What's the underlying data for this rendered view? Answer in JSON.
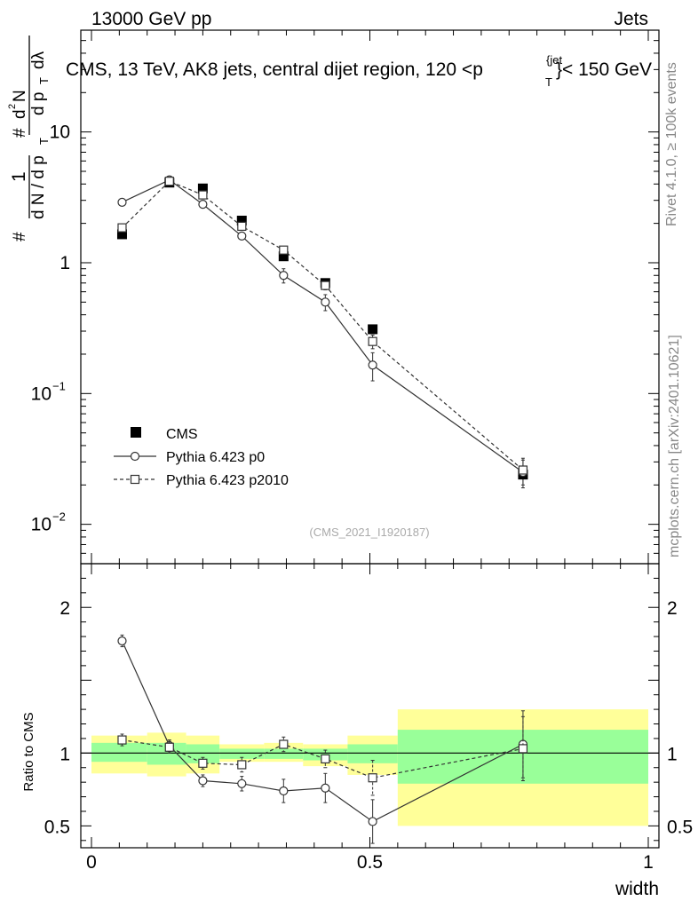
{
  "header": {
    "left": "13000 GeV pp",
    "right": "Jets"
  },
  "side_labels": {
    "rivet": "Rivet 4.1.0, ≥ 100k events",
    "mcplots": "mcplots.cern.ch [arXiv:2401.10621]"
  },
  "colors": {
    "band_inner": "#99ff99",
    "band_outer": "#ffff99",
    "line": "#333333",
    "side_text": "#888888"
  },
  "chart_data": {
    "type": "line",
    "title_main": "CMS, 13 TeV, AK8 jets, central dijet region, 120 <p",
    "title_sub": "T",
    "title_sup": "{jet",
    "title_end": "}< 150 GeV",
    "reference": "(CMS_2021_I1920187)",
    "xlabel": "width",
    "ylabel_main": {
      "hash1": "#",
      "one": "1",
      "frac_den": "d N / d p",
      "T": "T",
      "hash2": "#",
      "num": "d",
      "sq": "2",
      "N": "N",
      "den": "d p",
      "dl": "dλ"
    },
    "ylabel_ratio": "Ratio to CMS",
    "xlim": [
      0,
      1
    ],
    "ylim_main": [
      0.005,
      60
    ],
    "ylim_ratio": [
      0.35,
      2.3
    ],
    "x_ticks": [
      {
        "v": 0,
        "label": "0"
      },
      {
        "v": 0.5,
        "label": "0.5"
      },
      {
        "v": 1,
        "label": "1"
      }
    ],
    "y_ticks_main": [
      {
        "v": 10,
        "label": "10",
        "sup": ""
      },
      {
        "v": 1,
        "label": "1",
        "sup": ""
      },
      {
        "v": 0.1,
        "label": "10",
        "sup": "−1"
      },
      {
        "v": 0.01,
        "label": "10",
        "sup": "−2"
      }
    ],
    "y_ticks_ratio": [
      {
        "v": 2,
        "label": "2"
      },
      {
        "v": 1,
        "label": "1"
      },
      {
        "v": 0.5,
        "label": "0.5"
      }
    ],
    "bins": [
      {
        "lo": 0.0,
        "hi": 0.1
      },
      {
        "lo": 0.1,
        "hi": 0.17
      },
      {
        "lo": 0.17,
        "hi": 0.23
      },
      {
        "lo": 0.23,
        "hi": 0.31
      },
      {
        "lo": 0.31,
        "hi": 0.38
      },
      {
        "lo": 0.38,
        "hi": 0.46
      },
      {
        "lo": 0.46,
        "hi": 0.55
      },
      {
        "lo": 0.55,
        "hi": 1.0
      }
    ],
    "x": [
      0.055,
      0.14,
      0.2,
      0.27,
      0.345,
      0.42,
      0.505,
      0.775
    ],
    "series": [
      {
        "name": "CMS",
        "marker": "filled-square",
        "values": [
          1.65,
          4.1,
          3.7,
          2.1,
          1.12,
          0.7,
          0.31,
          0.024
        ]
      },
      {
        "name": "Pythia 6.423 p0",
        "marker": "open-circle",
        "dash": "solid",
        "values": [
          2.9,
          4.3,
          2.8,
          1.6,
          0.8,
          0.5,
          0.165,
          0.025
        ],
        "errors": [
          0.1,
          0.15,
          0.12,
          0.1,
          0.1,
          0.07,
          0.04,
          0.006
        ]
      },
      {
        "name": "Pythia 6.423 p2010",
        "marker": "open-square",
        "dash": "dashed",
        "values": [
          1.85,
          4.2,
          3.3,
          1.9,
          1.25,
          0.67,
          0.25,
          0.026
        ],
        "errors": [
          0.07,
          0.15,
          0.12,
          0.08,
          0.08,
          0.05,
          0.03,
          0.006
        ]
      }
    ],
    "ratio_series": [
      {
        "name": "Pythia 6.423 p0",
        "values": [
          1.77,
          1.05,
          0.81,
          0.79,
          0.74,
          0.76,
          0.53,
          1.06
        ],
        "errors": [
          0.04,
          0.04,
          0.04,
          0.05,
          0.08,
          0.1,
          0.15,
          0.23
        ]
      },
      {
        "name": "Pythia 6.423 p2010",
        "values": [
          1.09,
          1.04,
          0.93,
          0.92,
          1.06,
          0.96,
          0.83,
          1.03
        ],
        "errors": [
          0.04,
          0.04,
          0.04,
          0.05,
          0.05,
          0.06,
          0.12,
          0.22
        ]
      }
    ],
    "bands_inner": [
      [
        0.94,
        1.07
      ],
      [
        0.92,
        1.07
      ],
      [
        0.93,
        1.06
      ],
      [
        0.96,
        1.03
      ],
      [
        0.96,
        1.03
      ],
      [
        0.95,
        1.03
      ],
      [
        0.93,
        1.06
      ],
      [
        0.79,
        1.16
      ]
    ],
    "bands_outer": [
      [
        0.86,
        1.12
      ],
      [
        0.84,
        1.14
      ],
      [
        0.86,
        1.12
      ],
      [
        0.94,
        1.06
      ],
      [
        0.94,
        1.07
      ],
      [
        0.91,
        1.06
      ],
      [
        0.85,
        1.12
      ],
      [
        0.5,
        1.3
      ]
    ]
  }
}
